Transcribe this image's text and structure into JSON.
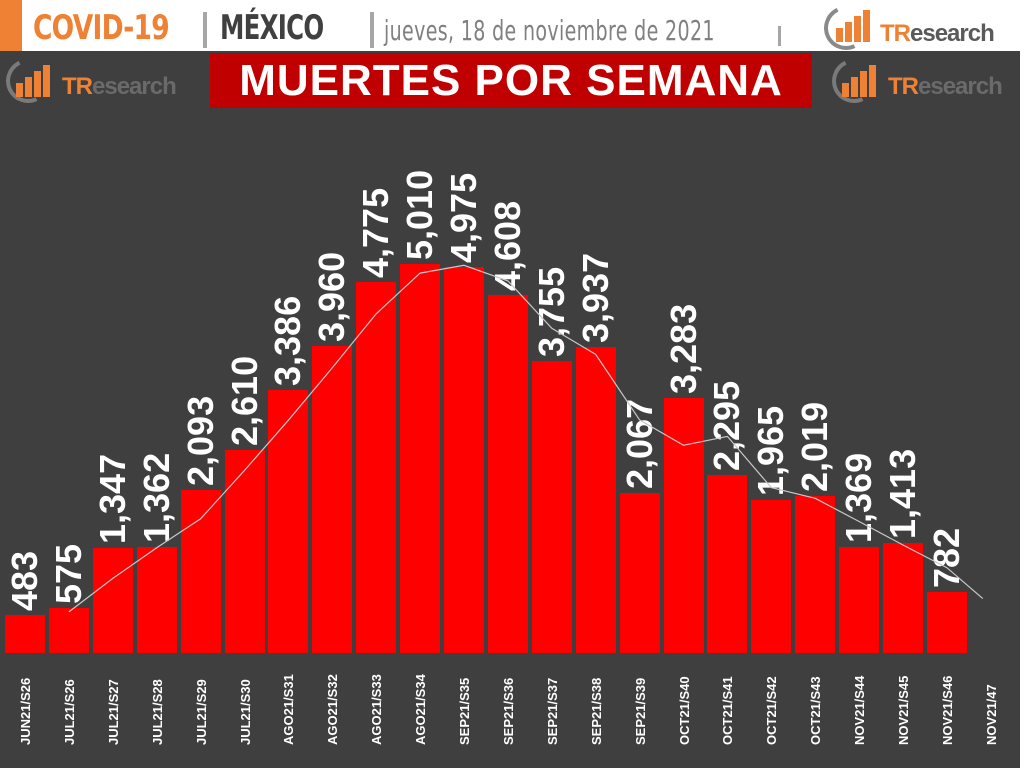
{
  "header": {
    "topic": "COVID-19",
    "country": "MÉXICO",
    "date": "jueves, 18 de noviembre de 2021",
    "separator": "|"
  },
  "logo": {
    "prefix": "TR",
    "suffix": "esearch"
  },
  "title": "MUERTES POR SEMANA",
  "colors": {
    "accent_orange": "#ee8133",
    "panel_bg": "#3f3f3f",
    "title_bg": "#c00000",
    "bar": "#ff0000",
    "trend_line": "#c8c8c8",
    "text": "#ffffff"
  },
  "chart_data": {
    "type": "bar",
    "title": "MUERTES POR SEMANA",
    "xlabel": "",
    "ylabel": "",
    "categories": [
      "JUN21/S26",
      "JUL21/S26",
      "JUL21/S27",
      "JUL21/S28",
      "JUL21/S29",
      "JUL21/S30",
      "AGO21/S31",
      "AGO21/S32",
      "AGO21/S33",
      "AGO21/S34",
      "SEP21/S35",
      "SEP21/S36",
      "SEP21/S37",
      "SEP21/S38",
      "SEP21/S39",
      "OCT21/S40",
      "OCT21/S41",
      "OCT21/S42",
      "OCT21/S43",
      "NOV21/S44",
      "NOV21/S45",
      "NOV21/S46",
      "NOV21/47"
    ],
    "series": [
      {
        "name": "Muertes por semana",
        "type": "bar",
        "values": [
          483,
          575,
          1347,
          1362,
          2093,
          2610,
          3386,
          3960,
          4775,
          5010,
          4975,
          4608,
          3755,
          3937,
          2067,
          3283,
          2295,
          1965,
          2019,
          1369,
          1413,
          782,
          null
        ]
      },
      {
        "name": "Tendencia (promedio móvil)",
        "type": "line",
        "values": [
          null,
          529,
          961,
          1355,
          1728,
          2352,
          2998,
          3673,
          4368,
          4893,
          4993,
          4792,
          4182,
          3846,
          3002,
          2675,
          2789,
          2130,
          1992,
          1694,
          1391,
          1098,
          700
        ]
      }
    ],
    "data_labels": [
      "483",
      "575",
      "1,347",
      "1,362",
      "2,093",
      "2,610",
      "3,386",
      "3,960",
      "4,775",
      "5,010",
      "4,975",
      "4,608",
      "3,755",
      "3,937",
      "2,067",
      "3,283",
      "2,295",
      "1,965",
      "2,019",
      "1,369",
      "1,413",
      "782",
      ""
    ],
    "ylim": [
      0,
      5200
    ],
    "grid": false,
    "legend": "none",
    "label_orientation": "vertical"
  }
}
